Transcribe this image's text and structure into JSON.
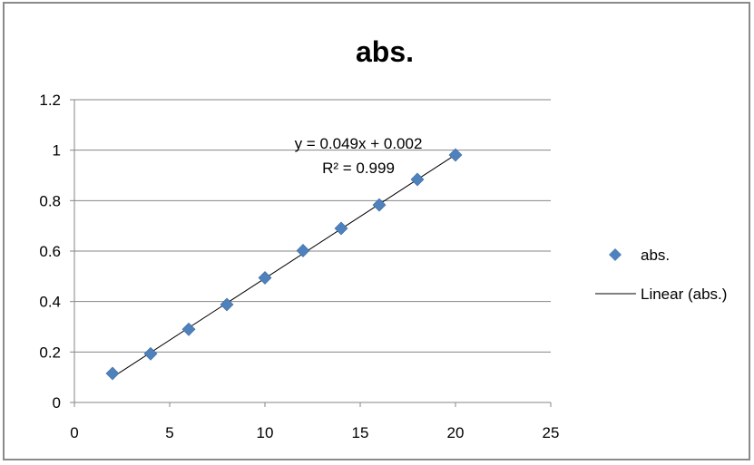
{
  "chart_data": {
    "type": "scatter",
    "title": "abs.",
    "xlabel": "",
    "ylabel": "",
    "xlim": [
      0,
      25
    ],
    "ylim": [
      0,
      1.2
    ],
    "x_ticks": [
      "0",
      "5",
      "10",
      "15",
      "20",
      "25"
    ],
    "y_ticks": [
      "0",
      "0.2",
      "0.4",
      "0.6",
      "0.8",
      "1",
      "1.2"
    ],
    "grid": "horizontal",
    "legend_position": "right",
    "series": [
      {
        "name": "abs.",
        "type": "scatter",
        "marker": "diamond",
        "color": "#4F81BD",
        "x": [
          2,
          4,
          6,
          8,
          10,
          12,
          14,
          16,
          18,
          20
        ],
        "y": [
          0.115,
          0.193,
          0.29,
          0.388,
          0.494,
          0.602,
          0.69,
          0.783,
          0.884,
          0.981
        ]
      },
      {
        "name": "Linear (abs.)",
        "type": "line",
        "color": "#000000",
        "x": [
          2,
          20
        ],
        "y": [
          0.1,
          0.982
        ]
      }
    ],
    "annotations": {
      "equation": "y = 0.049x + 0.002",
      "r_squared": "R² = 0.999"
    }
  }
}
